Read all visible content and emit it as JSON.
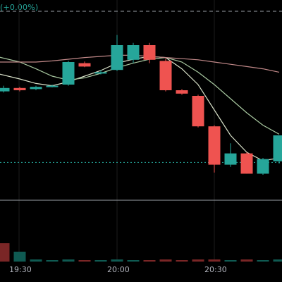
{
  "header": {
    "change_text": "(+0.00%)"
  },
  "colors": {
    "background": "#000000",
    "up": "#26a69a",
    "down": "#ef5350",
    "grid": "#1b1b1b",
    "ma_fast": "#d8e0c8",
    "ma_mid": "#a8c8a0",
    "ma_slow": "#c08888",
    "reference_dashed": "#9aa0a6",
    "reference_dotted": "#26a69a",
    "baseline": "#9aa0a6"
  },
  "chart_data": {
    "type": "candlestick",
    "x_axis_labels": [
      "19:30",
      "20:00",
      "20:30"
    ],
    "candles": [
      {
        "open": 0.78,
        "close": 0.84,
        "high": 0.88,
        "low": 0.76
      },
      {
        "open": 0.84,
        "close": 0.8,
        "high": 0.86,
        "low": 0.78
      },
      {
        "open": 0.82,
        "close": 0.86,
        "high": 0.88,
        "low": 0.8
      },
      {
        "open": 0.86,
        "close": 0.88,
        "high": 0.9,
        "low": 0.85
      },
      {
        "open": 0.9,
        "close": 1.3,
        "high": 1.32,
        "low": 0.88
      },
      {
        "open": 1.28,
        "close": 1.22,
        "high": 1.31,
        "low": 1.21
      },
      {
        "open": 1.1,
        "close": 1.12,
        "high": 1.16,
        "low": 1.08
      },
      {
        "open": 1.16,
        "close": 1.6,
        "high": 1.78,
        "low": 1.14
      },
      {
        "open": 1.34,
        "close": 1.6,
        "high": 1.64,
        "low": 1.28
      },
      {
        "open": 1.6,
        "close": 1.34,
        "high": 1.64,
        "low": 1.28
      },
      {
        "open": 1.32,
        "close": 0.8,
        "high": 1.36,
        "low": 0.78
      },
      {
        "open": 0.8,
        "close": 0.74,
        "high": 0.82,
        "low": 0.72
      },
      {
        "open": 0.7,
        "close": 0.16,
        "high": 0.72,
        "low": 0.14
      },
      {
        "open": 0.16,
        "close": -0.52,
        "high": 0.18,
        "low": -0.66
      },
      {
        "open": -0.52,
        "close": -0.32,
        "high": -0.14,
        "low": -0.56
      },
      {
        "open": -0.32,
        "close": -0.68,
        "high": -0.3,
        "low": -0.68
      },
      {
        "open": -0.68,
        "close": -0.42,
        "high": -0.4,
        "low": -0.7
      },
      {
        "open": -0.46,
        "close": 0.0,
        "high": 0.0,
        "low": -0.5
      }
    ],
    "volume": [
      {
        "value": 26,
        "dir": "down"
      },
      {
        "value": 14,
        "dir": "up"
      },
      {
        "value": 3,
        "dir": "up"
      },
      {
        "value": 2,
        "dir": "up"
      },
      {
        "value": 3,
        "dir": "up"
      },
      {
        "value": 2,
        "dir": "down"
      },
      {
        "value": 2,
        "dir": "up"
      },
      {
        "value": 3,
        "dir": "up"
      },
      {
        "value": 2,
        "dir": "up"
      },
      {
        "value": 2,
        "dir": "down"
      },
      {
        "value": 3,
        "dir": "down"
      },
      {
        "value": 2,
        "dir": "down"
      },
      {
        "value": 3,
        "dir": "down"
      },
      {
        "value": 3,
        "dir": "down"
      },
      {
        "value": 2,
        "dir": "up"
      },
      {
        "value": 3,
        "dir": "down"
      },
      {
        "value": 2,
        "dir": "up"
      },
      {
        "value": 3,
        "dir": "up"
      }
    ],
    "ma_series": [
      {
        "key": "ma_fast",
        "values": [
          1.1,
          1.0,
          0.92,
          0.88,
          0.95,
          1.05,
          1.15,
          1.28,
          1.35,
          1.4,
          1.38,
          1.18,
          0.9,
          0.45,
          0.0,
          -0.3,
          -0.45,
          -0.4
        ]
      },
      {
        "key": "ma_mid",
        "values": [
          1.4,
          1.3,
          1.18,
          1.05,
          0.98,
          1.02,
          1.1,
          1.2,
          1.28,
          1.35,
          1.38,
          1.3,
          1.12,
          0.9,
          0.65,
          0.4,
          0.18,
          0.02
        ]
      },
      {
        "key": "ma_slow",
        "values": [
          1.3,
          1.3,
          1.3,
          1.32,
          1.35,
          1.38,
          1.4,
          1.42,
          1.42,
          1.4,
          1.38,
          1.36,
          1.34,
          1.3,
          1.26,
          1.22,
          1.18,
          1.12
        ]
      }
    ],
    "dashed_level": 2.2,
    "dotted_level": -0.48,
    "y_range": [
      -1.15,
      2.4
    ]
  }
}
